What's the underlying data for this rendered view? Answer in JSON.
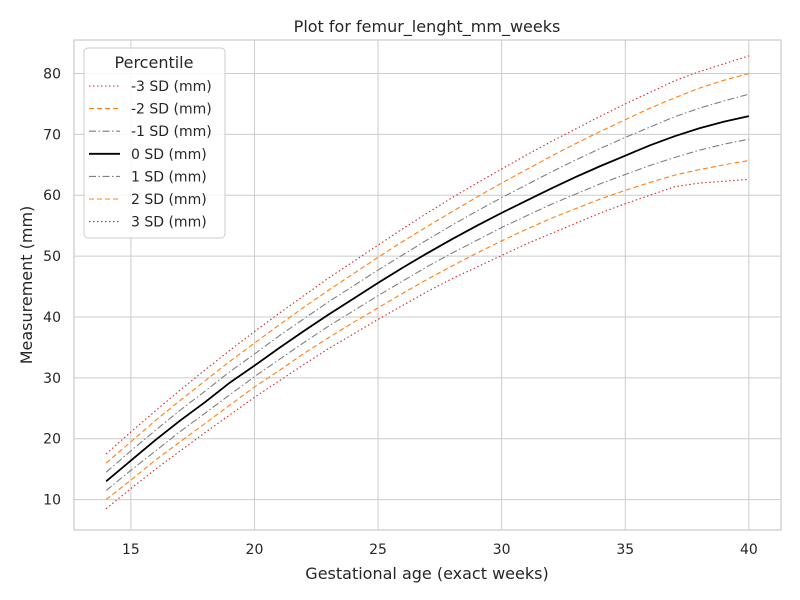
{
  "chart_data": {
    "type": "line",
    "title": "Plot for femur_lenght_mm_weeks",
    "xlabel": "Gestational age (exact weeks)",
    "ylabel": "Measurement (mm)",
    "xlim": [
      12.7,
      41.3
    ],
    "ylim": [
      5,
      85.5
    ],
    "xticks": [
      15,
      20,
      25,
      30,
      35,
      40
    ],
    "yticks": [
      10,
      20,
      30,
      40,
      50,
      60,
      70,
      80
    ],
    "grid": true,
    "legend": {
      "title": "Percentile",
      "placement": "upper-left"
    },
    "x": [
      14,
      15,
      16,
      17,
      18,
      19,
      20,
      21,
      22,
      23,
      24,
      25,
      26,
      27,
      28,
      29,
      30,
      31,
      32,
      33,
      34,
      35,
      36,
      37,
      38,
      39,
      40
    ],
    "series": [
      {
        "name": "-3 SD (mm)",
        "color": "#d62728",
        "dash": "dotted",
        "values": [
          8.5,
          11.8,
          15.0,
          18.0,
          21.0,
          23.9,
          26.8,
          29.5,
          32.2,
          34.8,
          37.2,
          39.6,
          41.9,
          44.2,
          46.3,
          48.2,
          50.1,
          52.0,
          53.7,
          55.4,
          57.1,
          58.6,
          60.0,
          61.4,
          62.0,
          62.3,
          62.6
        ]
      },
      {
        "name": "-2 SD (mm)",
        "color": "#ff7f0e",
        "dash": "dashed",
        "values": [
          10.0,
          13.2,
          16.5,
          19.5,
          22.5,
          25.5,
          28.5,
          31.2,
          34.0,
          36.6,
          39.1,
          41.5,
          43.9,
          46.2,
          48.4,
          50.5,
          52.5,
          54.4,
          56.2,
          57.8,
          59.4,
          60.8,
          62.1,
          63.3,
          64.2,
          65.0,
          65.7
        ]
      },
      {
        "name": "-1 SD (mm)",
        "color": "#7f7f7f",
        "dash": "dashdot",
        "values": [
          11.5,
          14.8,
          18.0,
          21.2,
          24.2,
          27.2,
          30.2,
          33.0,
          35.8,
          38.5,
          41.0,
          43.5,
          45.9,
          48.3,
          50.5,
          52.6,
          54.7,
          56.6,
          58.5,
          60.2,
          61.9,
          63.4,
          64.9,
          66.2,
          67.4,
          68.4,
          69.2
        ]
      },
      {
        "name": "0 SD (mm)",
        "color": "#000000",
        "dash": "solid",
        "values": [
          13.0,
          16.4,
          19.8,
          23.0,
          26.0,
          29.2,
          32.0,
          34.9,
          37.7,
          40.4,
          43.0,
          45.6,
          48.1,
          50.5,
          52.8,
          55.0,
          57.1,
          59.1,
          61.1,
          63.0,
          64.8,
          66.5,
          68.2,
          69.7,
          71.0,
          72.1,
          73.0
        ]
      },
      {
        "name": "1 SD (mm)",
        "color": "#7f7f7f",
        "dash": "dashdot",
        "values": [
          14.5,
          18.0,
          21.4,
          24.7,
          27.8,
          31.0,
          33.9,
          36.9,
          39.7,
          42.5,
          45.1,
          47.7,
          50.2,
          52.7,
          55.1,
          57.4,
          59.6,
          61.7,
          63.8,
          65.8,
          67.7,
          69.5,
          71.2,
          72.9,
          74.3,
          75.5,
          76.6
        ]
      },
      {
        "name": "2 SD (mm)",
        "color": "#ff7f0e",
        "dash": "dashed",
        "values": [
          16.0,
          19.5,
          23.0,
          26.3,
          29.5,
          32.7,
          35.7,
          38.7,
          41.6,
          44.4,
          47.1,
          49.8,
          52.4,
          54.9,
          57.3,
          59.7,
          62.0,
          64.2,
          66.4,
          68.5,
          70.5,
          72.4,
          74.3,
          76.0,
          77.6,
          78.9,
          80.0
        ]
      },
      {
        "name": "3 SD (mm)",
        "color": "#d62728",
        "dash": "dotted",
        "values": [
          17.5,
          21.1,
          24.6,
          28.0,
          31.3,
          34.5,
          37.6,
          40.6,
          43.5,
          46.4,
          49.1,
          51.8,
          54.5,
          57.1,
          59.6,
          62.0,
          64.3,
          66.6,
          68.8,
          70.9,
          73.0,
          75.0,
          76.9,
          78.8,
          80.3,
          81.6,
          82.9
        ]
      }
    ]
  }
}
